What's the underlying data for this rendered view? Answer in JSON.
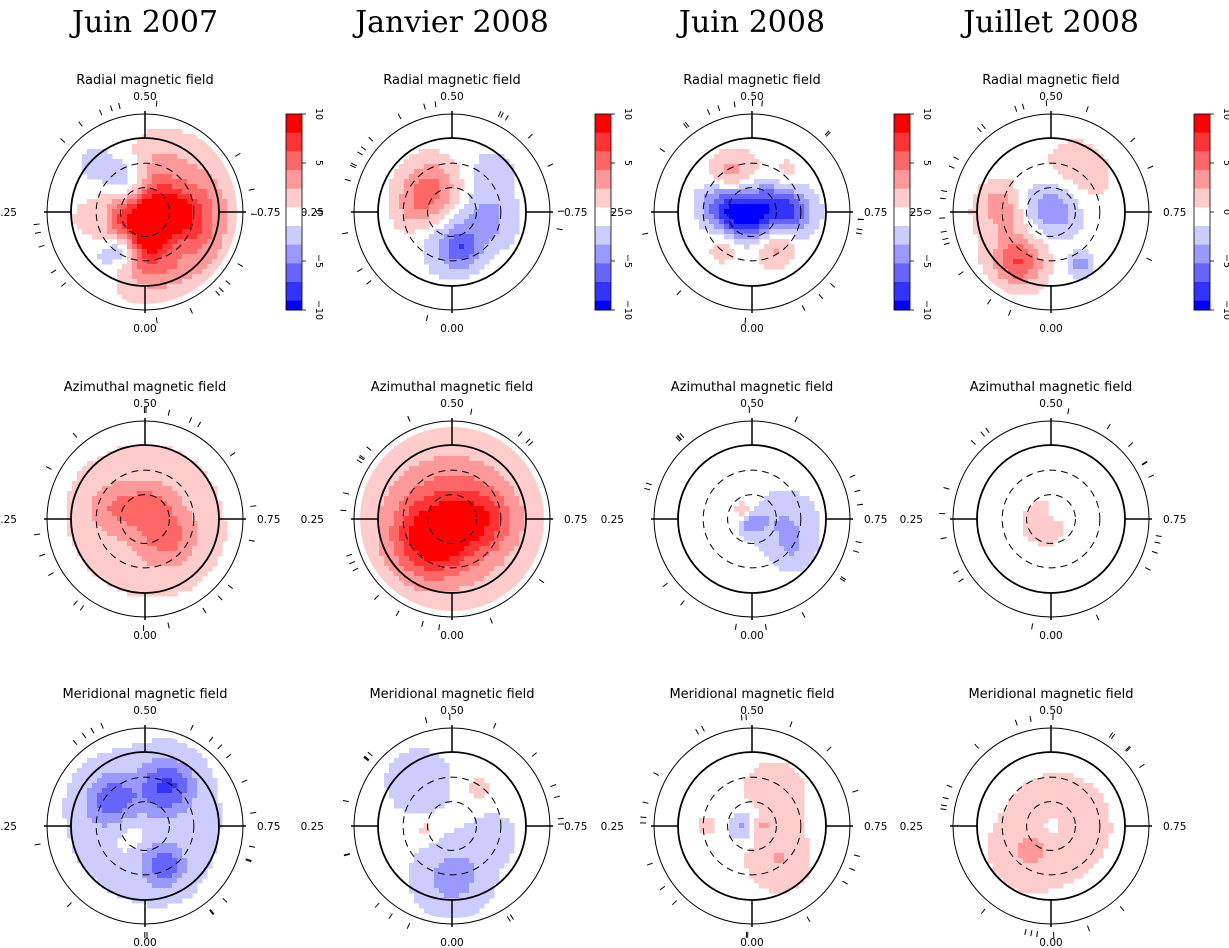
{
  "columns": [
    {
      "title": "Juin 2007"
    },
    {
      "title": "Janvier 2008"
    },
    {
      "title": "Juin 2008"
    },
    {
      "title": "Juillet 2008"
    }
  ],
  "rows": [
    {
      "title": "Radial magnetic field"
    },
    {
      "title": "Azimuthal magnetic field"
    },
    {
      "title": "Meridional magnetic field"
    }
  ],
  "phase_labels": {
    "top": "0.50",
    "left": "0.25",
    "right": "0.75",
    "bottom": "0.00"
  },
  "colorbar": {
    "ticks": [
      "10",
      "5",
      "0",
      "−5",
      "−10"
    ]
  },
  "colors": {
    "positive": "#ff0000",
    "negative": "#0000ff",
    "neutral": "#ffffff"
  },
  "maps": [
    [
      {
        "blobs": [
          [
            0.25,
            0.05,
            0.55,
            9
          ],
          [
            0.05,
            0.2,
            0.45,
            6
          ],
          [
            -0.2,
            -0.35,
            0.22,
            -6
          ],
          [
            0.4,
            0.45,
            0.18,
            -4
          ],
          [
            -0.5,
            0.55,
            0.25,
            -4
          ],
          [
            -0.55,
            -0.55,
            0.3,
            -3
          ],
          [
            -0.3,
            0.5,
            0.15,
            -5
          ],
          [
            0.45,
            -0.4,
            0.2,
            -2
          ],
          [
            -0.6,
            0.05,
            0.12,
            -2
          ]
        ]
      },
      {
        "blobs": [
          [
            -0.3,
            -0.3,
            0.28,
            6
          ],
          [
            0.45,
            0.1,
            0.28,
            -4
          ],
          [
            -0.05,
            0.5,
            0.25,
            -3
          ],
          [
            0.15,
            0.5,
            0.18,
            -4
          ],
          [
            0.55,
            -0.55,
            0.22,
            -2
          ],
          [
            -0.55,
            0.0,
            0.2,
            2
          ]
        ]
      },
      {
        "blobs": [
          [
            0.1,
            -0.1,
            0.35,
            -9
          ],
          [
            -0.2,
            0.05,
            0.22,
            -6
          ],
          [
            -0.05,
            -0.45,
            0.25,
            5
          ],
          [
            0.3,
            0.45,
            0.2,
            5
          ],
          [
            -0.35,
            0.45,
            0.18,
            3
          ],
          [
            0.55,
            0.0,
            0.2,
            -4
          ],
          [
            -0.5,
            -0.15,
            0.18,
            -3
          ],
          [
            0.45,
            -0.5,
            0.2,
            3
          ],
          [
            -0.35,
            -0.5,
            0.2,
            3
          ]
        ]
      },
      {
        "blobs": [
          [
            0.0,
            -0.05,
            0.3,
            -7
          ],
          [
            -0.4,
            0.2,
            0.4,
            3
          ],
          [
            0.3,
            -0.45,
            0.35,
            3
          ],
          [
            -0.45,
            0.7,
            0.22,
            6
          ],
          [
            0.4,
            0.7,
            0.12,
            -4
          ],
          [
            -0.7,
            -0.1,
            0.2,
            3
          ]
        ]
      }
    ],
    [
      {
        "blobs": [
          [
            0.0,
            0.0,
            0.85,
            2
          ],
          [
            0.05,
            -0.2,
            0.25,
            3
          ],
          [
            -0.45,
            -0.15,
            0.25,
            3
          ],
          [
            0.3,
            0.25,
            0.3,
            4
          ]
        ]
      },
      {
        "blobs": [
          [
            0.0,
            0.0,
            1.05,
            2
          ],
          [
            -0.05,
            0.0,
            0.55,
            5
          ],
          [
            -0.3,
            0.3,
            0.35,
            6
          ],
          [
            0.4,
            0.0,
            0.3,
            4
          ]
        ]
      },
      {
        "blobs": [
          [
            0.45,
            0.05,
            0.3,
            -3
          ],
          [
            0.55,
            0.45,
            0.2,
            -2
          ],
          [
            0.0,
            0.05,
            0.12,
            -4
          ],
          [
            -0.1,
            -0.1,
            0.1,
            3
          ]
        ]
      },
      {
        "blobs": [
          [
            -0.1,
            0.05,
            0.2,
            3
          ],
          [
            0.05,
            -0.08,
            0.08,
            -2
          ]
        ]
      }
    ],
    [
      {
        "blobs": [
          [
            0.0,
            0.0,
            0.85,
            -2
          ],
          [
            0.3,
            -0.55,
            0.25,
            -6
          ],
          [
            -0.45,
            -0.35,
            0.25,
            -5
          ],
          [
            0.25,
            0.55,
            0.2,
            -5
          ],
          [
            -0.2,
            0.1,
            0.2,
            2
          ]
        ]
      },
      {
        "blobs": [
          [
            -0.45,
            -0.6,
            0.3,
            -3
          ],
          [
            0.0,
            0.7,
            0.35,
            -4
          ],
          [
            0.55,
            0.15,
            0.25,
            -2
          ],
          [
            -0.35,
            0.05,
            0.12,
            2
          ],
          [
            0.35,
            -0.5,
            0.12,
            2
          ]
        ]
      },
      {
        "blobs": [
          [
            0.3,
            -0.45,
            0.35,
            2
          ],
          [
            0.35,
            0.45,
            0.3,
            3
          ],
          [
            -0.1,
            0.0,
            0.15,
            -4
          ],
          [
            0.1,
            0.0,
            0.1,
            3
          ],
          [
            -0.6,
            0.0,
            0.1,
            2
          ]
        ]
      },
      {
        "blobs": [
          [
            0.1,
            0.0,
            0.6,
            2
          ],
          [
            -0.35,
            0.4,
            0.3,
            2
          ],
          [
            0.0,
            0.0,
            0.08,
            -3
          ]
        ]
      }
    ]
  ]
}
